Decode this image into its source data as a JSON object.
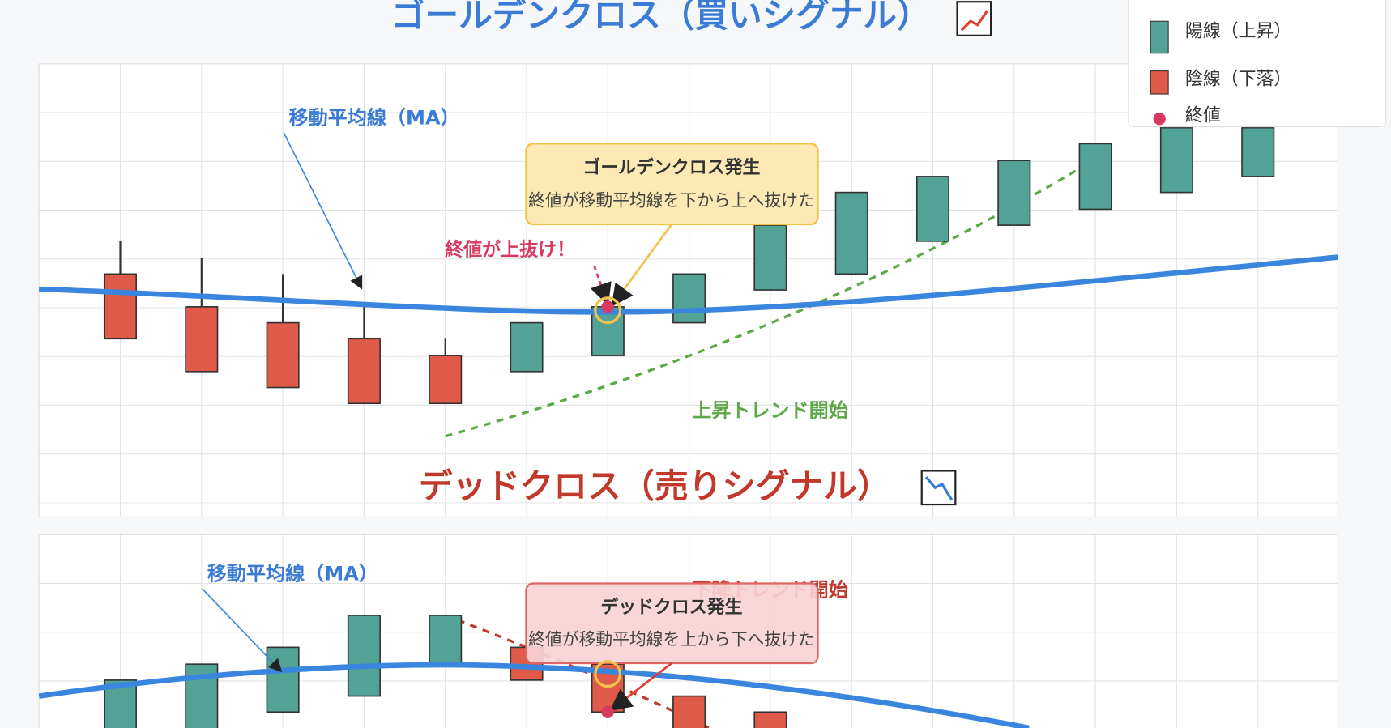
{
  "golden": {
    "title": "ゴールデンクロス（買いシグナル）",
    "ma_label": "移動平均線（MA）",
    "callout": {
      "title": "ゴールデンクロス発生",
      "text": "終値が移動平均線を下から上へ抜けた"
    },
    "point_label": "終値が上抜け！",
    "trend_label": "上昇トレンド開始"
  },
  "dead": {
    "title": "デッドクロス（売りシグナル）",
    "ma_label": "移動平均線（MA）",
    "callout": {
      "title": "デッドクロス発生",
      "text": "終値が移動平均線を上から下へ抜けた"
    },
    "trend_label": "下降トレンド開始"
  },
  "legend": {
    "items": [
      "陽線（上昇）",
      "陰線（下落）",
      "終値"
    ]
  }
}
